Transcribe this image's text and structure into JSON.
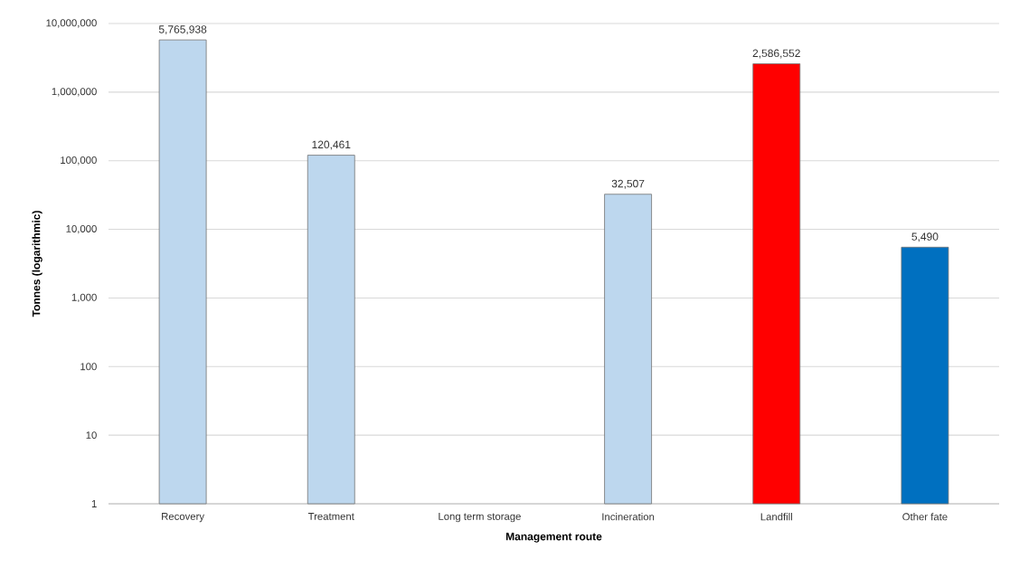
{
  "chart_data": {
    "type": "bar",
    "xlabel": "Management route",
    "ylabel": "Tonnes (logarithmic)",
    "categories": [
      "Recovery",
      "Treatment",
      "Long term storage",
      "Incineration",
      "Landfill",
      "Other fate"
    ],
    "values": [
      5765938,
      120461,
      null,
      32507,
      2586552,
      5490
    ],
    "value_labels": [
      "5,765,938",
      "120,461",
      null,
      "32,507",
      "2,586,552",
      "5,490"
    ],
    "colors": [
      "#bdd7ee",
      "#bdd7ee",
      "#bdd7ee",
      "#bdd7ee",
      "#ff0000",
      "#0070c0"
    ],
    "log": "y",
    "ylim": [
      1,
      10000000
    ],
    "yticks": [
      {
        "value": 1,
        "label": "1"
      },
      {
        "value": 10,
        "label": "10"
      },
      {
        "value": 100,
        "label": "100"
      },
      {
        "value": 1000,
        "label": "1,000"
      },
      {
        "value": 10000,
        "label": "10,000"
      },
      {
        "value": 100000,
        "label": "100,000"
      },
      {
        "value": 1000000,
        "label": "1,000,000"
      },
      {
        "value": 10000000,
        "label": "10,000,000"
      }
    ],
    "grid": "y"
  }
}
